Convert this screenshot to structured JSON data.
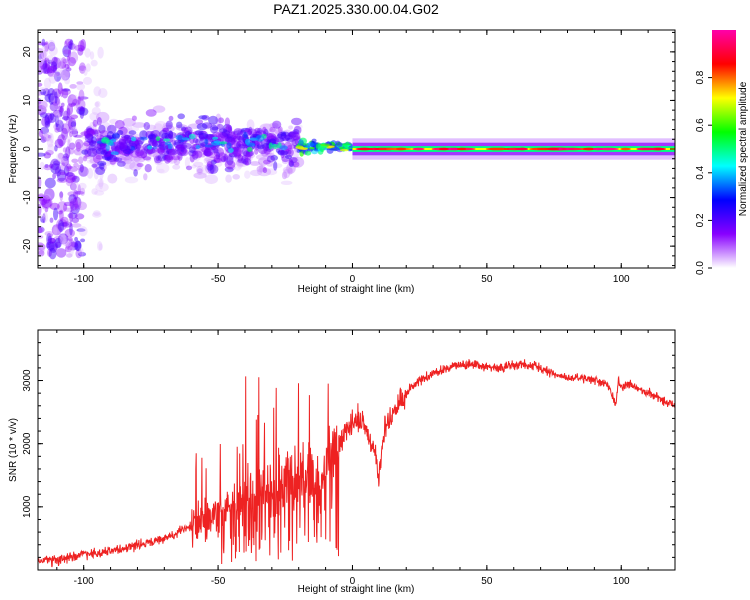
{
  "title": "PAZ1.2025.330.00.04.G02",
  "chart_data": [
    {
      "type": "heatmap",
      "xlabel": "Height of straight line (km)",
      "ylabel": "Frequency (Hz)",
      "xlim": [
        -117,
        120
      ],
      "ylim": [
        -24.5,
        24.5
      ],
      "xticks": [
        -100,
        -50,
        0,
        50,
        100
      ],
      "yticks": [
        -20,
        -10,
        0,
        10,
        20
      ],
      "colorbar": {
        "label": "Normalized spectral amplitude",
        "range": [
          0,
          1
        ],
        "ticks": [
          "0.0",
          "0.2",
          "0.4",
          "0.6",
          "0.8"
        ],
        "tick_values": [
          0,
          0.2,
          0.4,
          0.6,
          0.8
        ],
        "colors": [
          "#ffffff",
          "#8800ff",
          "#0000ff",
          "#00ffff",
          "#00ff00",
          "#ffff00",
          "#ff0000",
          "#ff00aa"
        ]
      },
      "features": [
        {
          "x_range": [
            -117,
            -100
          ],
          "description": "sparse scattered weak energy",
          "freq_spread": 22
        },
        {
          "x_range": [
            -100,
            -20
          ],
          "description": "dispersed blobs",
          "freq_center": 1.0,
          "freq_spread": 7,
          "peak_amplitude": 0.45
        },
        {
          "x_range": [
            -20,
            0
          ],
          "description": "converging trace",
          "freq_center": 0.5,
          "freq_spread": 2,
          "peak_amplitude": 0.7
        },
        {
          "x_range": [
            0,
            120
          ],
          "description": "stable narrow carrier",
          "freq_center": 0.0,
          "freq_spread": 0.6,
          "peak_amplitude": 0.9
        }
      ]
    },
    {
      "type": "line",
      "xlabel": "Height of straight line (km)",
      "ylabel": "SNR (10 * v/v)",
      "xlim": [
        -117,
        120
      ],
      "ylim": [
        0,
        3800
      ],
      "xticks": [
        -100,
        -50,
        0,
        50,
        100
      ],
      "yticks": [
        1000,
        2000,
        3000
      ],
      "series": [
        {
          "name": "SNR",
          "color": "#ee2222",
          "x": [
            -117,
            -110,
            -100,
            -90,
            -80,
            -70,
            -60,
            -50,
            -45,
            -40,
            -35,
            -30,
            -25,
            -22,
            -20,
            -18,
            -15,
            -12,
            -10,
            -8,
            -6,
            -4,
            -2,
            0,
            2,
            4,
            6,
            8,
            10,
            12,
            15,
            18,
            20,
            22,
            25,
            28,
            30,
            35,
            40,
            45,
            50,
            55,
            60,
            65,
            70,
            75,
            80,
            85,
            90,
            95,
            98,
            99,
            100,
            102,
            105,
            110,
            115,
            120
          ],
          "y": [
            150,
            150,
            250,
            300,
            400,
            500,
            700,
            900,
            1000,
            1100,
            1200,
            1300,
            1400,
            1450,
            1500,
            1450,
            1400,
            1200,
            1700,
            1900,
            2000,
            2100,
            2200,
            2300,
            2400,
            2300,
            2100,
            1900,
            1500,
            2300,
            2500,
            2700,
            2800,
            2900,
            3000,
            3050,
            3100,
            3200,
            3250,
            3250,
            3200,
            3200,
            3250,
            3250,
            3200,
            3100,
            3050,
            3050,
            3000,
            2950,
            2600,
            3000,
            2900,
            2950,
            2900,
            2800,
            2700,
            2600
          ]
        }
      ],
      "noise": [
        {
          "x_range": [
            -117,
            -60
          ],
          "amplitude": 120
        },
        {
          "x_range": [
            -60,
            -40
          ],
          "amplitude": 500
        },
        {
          "x_range": [
            -40,
            -5
          ],
          "amplitude": 800
        },
        {
          "x_range": [
            -5,
            20
          ],
          "amplitude": 300
        },
        {
          "x_range": [
            20,
            120
          ],
          "amplitude": 110
        }
      ]
    }
  ]
}
